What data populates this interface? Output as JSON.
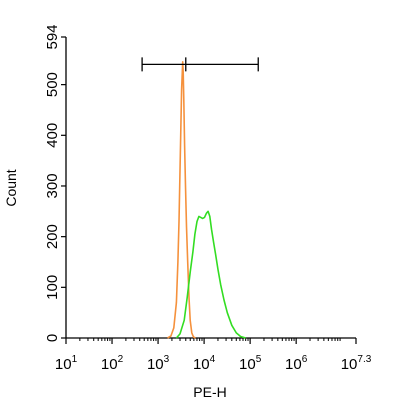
{
  "chart_data": {
    "type": "line",
    "title": "",
    "xlabel": "PE-H",
    "ylabel": "Count",
    "x_scale": "log",
    "xlim": [
      10,
      19952623
    ],
    "ylim": [
      0,
      594
    ],
    "x_ticks": [
      {
        "value": 10,
        "base": "10",
        "exp": "1"
      },
      {
        "value": 100,
        "base": "10",
        "exp": "2"
      },
      {
        "value": 1000,
        "base": "10",
        "exp": "3"
      },
      {
        "value": 10000,
        "base": "10",
        "exp": "4"
      },
      {
        "value": 100000,
        "base": "10",
        "exp": "5"
      },
      {
        "value": 1000000,
        "base": "10",
        "exp": "6"
      },
      {
        "value": 19952623,
        "base": "10",
        "exp": "7.3"
      }
    ],
    "y_ticks": [
      0,
      100,
      200,
      300,
      400,
      500,
      594
    ],
    "y_tick_labels": [
      "0",
      "100",
      "200",
      "300",
      "400",
      "500",
      "594"
    ],
    "grid": false,
    "legend": "none",
    "gate": {
      "x_start": 450,
      "x_mid": 4000,
      "x_end": 150000,
      "y": 540
    },
    "series": [
      {
        "color": "#f5913c",
        "points": [
          [
            1600,
            0
          ],
          [
            1900,
            4
          ],
          [
            2200,
            20
          ],
          [
            2500,
            70
          ],
          [
            2700,
            150
          ],
          [
            2850,
            230
          ],
          [
            3000,
            330
          ],
          [
            3150,
            430
          ],
          [
            3250,
            490
          ],
          [
            3350,
            520
          ],
          [
            3430,
            545
          ],
          [
            3520,
            525
          ],
          [
            3620,
            470
          ],
          [
            3780,
            380
          ],
          [
            3950,
            300
          ],
          [
            4150,
            220
          ],
          [
            4400,
            150
          ],
          [
            4700,
            80
          ],
          [
            5000,
            35
          ],
          [
            5400,
            10
          ],
          [
            5900,
            2
          ],
          [
            6500,
            0
          ]
        ]
      },
      {
        "color": "#33dd22",
        "points": [
          [
            2500,
            0
          ],
          [
            3000,
            8
          ],
          [
            3700,
            35
          ],
          [
            4300,
            80
          ],
          [
            5000,
            130
          ],
          [
            5700,
            170
          ],
          [
            6300,
            205
          ],
          [
            7000,
            230
          ],
          [
            7700,
            240
          ],
          [
            8500,
            238
          ],
          [
            9300,
            236
          ],
          [
            10200,
            238
          ],
          [
            11200,
            246
          ],
          [
            12200,
            250
          ],
          [
            13300,
            240
          ],
          [
            14500,
            215
          ],
          [
            16000,
            190
          ],
          [
            17800,
            165
          ],
          [
            20000,
            135
          ],
          [
            23000,
            105
          ],
          [
            27000,
            75
          ],
          [
            32000,
            50
          ],
          [
            40000,
            25
          ],
          [
            50000,
            10
          ],
          [
            62000,
            3
          ],
          [
            80000,
            0
          ]
        ]
      }
    ]
  }
}
